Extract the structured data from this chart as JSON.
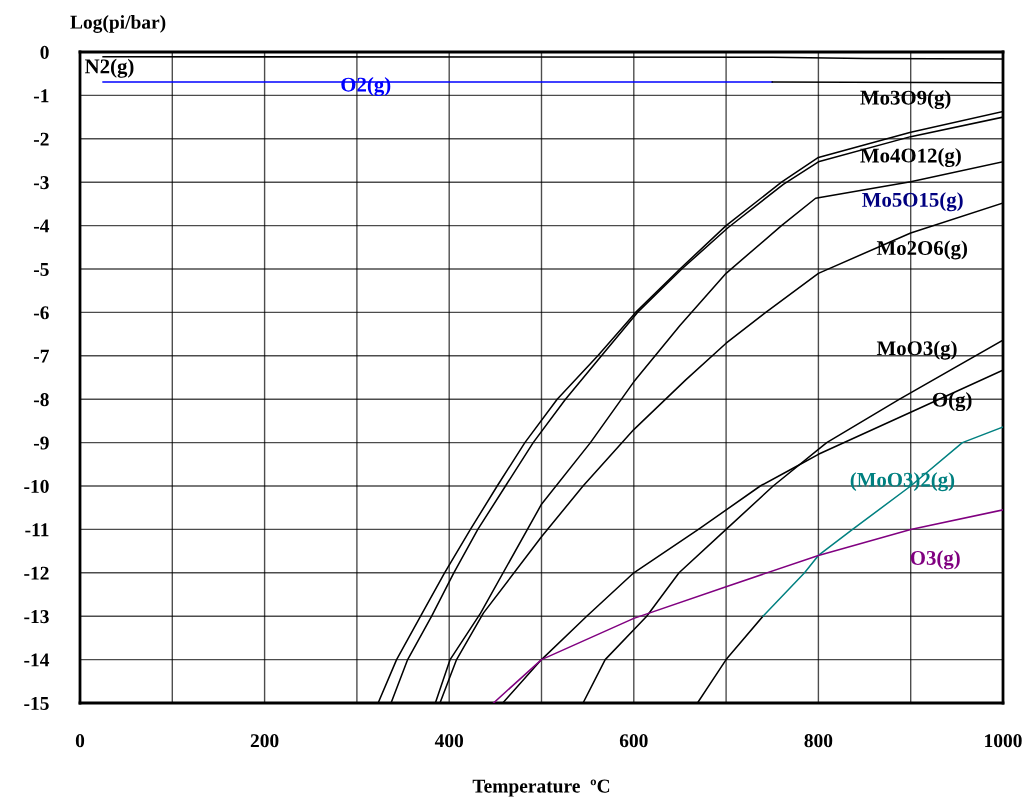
{
  "chart_data": {
    "type": "line",
    "xlabel": "Temperature  ºC",
    "ylabel": "Log(pi/bar)",
    "xlim": [
      0,
      1000
    ],
    "ylim": [
      -15,
      0
    ],
    "xticks": [
      0,
      {
        "value": 100,
        "label": null
      },
      200,
      {
        "value": 300,
        "label": null
      },
      400,
      {
        "value": 500,
        "label": null
      },
      600,
      {
        "value": 700,
        "label": null
      },
      800,
      {
        "value": 900,
        "label": null
      },
      1000
    ],
    "yticks": [
      0,
      -1,
      -2,
      -3,
      -4,
      -5,
      -6,
      -7,
      -8,
      -9,
      -10,
      -11,
      -12,
      -13,
      -14,
      -15
    ],
    "grid": true,
    "legend": false,
    "marker": "none",
    "line_style": "solid",
    "series": [
      {
        "name": "N2(g)",
        "color": "#000000",
        "x": [
          25,
          750,
          850,
          1000
        ],
        "values": [
          -0.11,
          -0.12,
          -0.15,
          -0.16
        ]
      },
      {
        "name": "O2(g)",
        "color": "#0000ff",
        "x": [
          25,
          750
        ],
        "values": [
          -0.69,
          -0.69
        ]
      },
      {
        "color": "#000000",
        "x": [
          750,
          1000
        ],
        "values": [
          -0.69,
          -0.71
        ]
      },
      {
        "name": "Mo3O9(g)",
        "color": "#000000",
        "x": [
          323,
          343,
          369,
          395,
          423,
          452,
          482,
          517,
          561,
          602,
          650,
          700,
          760,
          800,
          900,
          1000
        ],
        "values": [
          -15,
          -14,
          -13,
          -12,
          -11,
          -10,
          -9,
          -8,
          -7,
          -6,
          -5,
          -4.0,
          -3.0,
          -2.43,
          -1.85,
          -1.37
        ]
      },
      {
        "name": "Mo4O12(g)",
        "color": "#000000",
        "x": [
          337,
          355,
          381,
          405,
          431,
          461,
          491,
          526,
          565,
          604,
          652,
          702,
          762,
          800,
          900,
          1000
        ],
        "values": [
          -15,
          -14,
          -13,
          -12,
          -11,
          -10,
          -9,
          -8,
          -7,
          -6,
          -5,
          -4.05,
          -3.05,
          -2.53,
          -1.95,
          -1.5
        ]
      },
      {
        "name": "Mo5O15(g)",
        "color": "#000000",
        "x": [
          385,
          401,
          434,
          500,
          553,
          600,
          650,
          700,
          760,
          797,
          900,
          1000
        ],
        "values": [
          -15,
          -14,
          -12.93,
          -10.42,
          -9,
          -7.6,
          -6.3,
          -5.1,
          -4.0,
          -3.37,
          -2.99,
          -2.53
        ]
      },
      {
        "name": "Mo2O6(g)",
        "color": "#000000",
        "x": [
          390,
          408,
          437,
          500,
          545,
          600,
          656,
          700,
          743,
          800,
          900,
          1000
        ],
        "values": [
          -15,
          -14,
          -12.93,
          -11.17,
          -10,
          -8.7,
          -7.56,
          -6.71,
          -6,
          -5.1,
          -4.17,
          -3.48
        ]
      },
      {
        "name": "MoO3(g)",
        "color": "#000000",
        "x": [
          545,
          569,
          614,
          649,
          700,
          751,
          809,
          888,
          1000
        ],
        "values": [
          -15,
          -14,
          -13,
          -12,
          -11,
          -10,
          -9,
          -8,
          -6.64
        ]
      },
      {
        "name": "O(g)",
        "color": "#000000",
        "x": [
          458,
          500,
          549,
          600,
          670,
          737,
          776,
          800,
          900,
          1000
        ],
        "values": [
          -15,
          -14,
          -13,
          -12,
          -11,
          -10,
          -9.55,
          -9.27,
          -8.3,
          -7.33
        ]
      },
      {
        "color": "#000000",
        "x": [
          669,
          700,
          740
        ],
        "values": [
          -15,
          -14,
          -13
        ]
      },
      {
        "name": "(MoO3)2(g)",
        "color": "#008080",
        "x": [
          740,
          785,
          800,
          837,
          900,
          956,
          1000
        ],
        "values": [
          -13,
          -12,
          -11.6,
          -11,
          -10,
          -9,
          -8.64
        ]
      },
      {
        "name": "O3(g)",
        "color": "#800080",
        "x": [
          448,
          500,
          600,
          700,
          800,
          900,
          1000
        ],
        "values": [
          -15,
          -14,
          -13.05,
          -12.32,
          -11.6,
          -11.0,
          -10.55
        ]
      }
    ]
  }
}
